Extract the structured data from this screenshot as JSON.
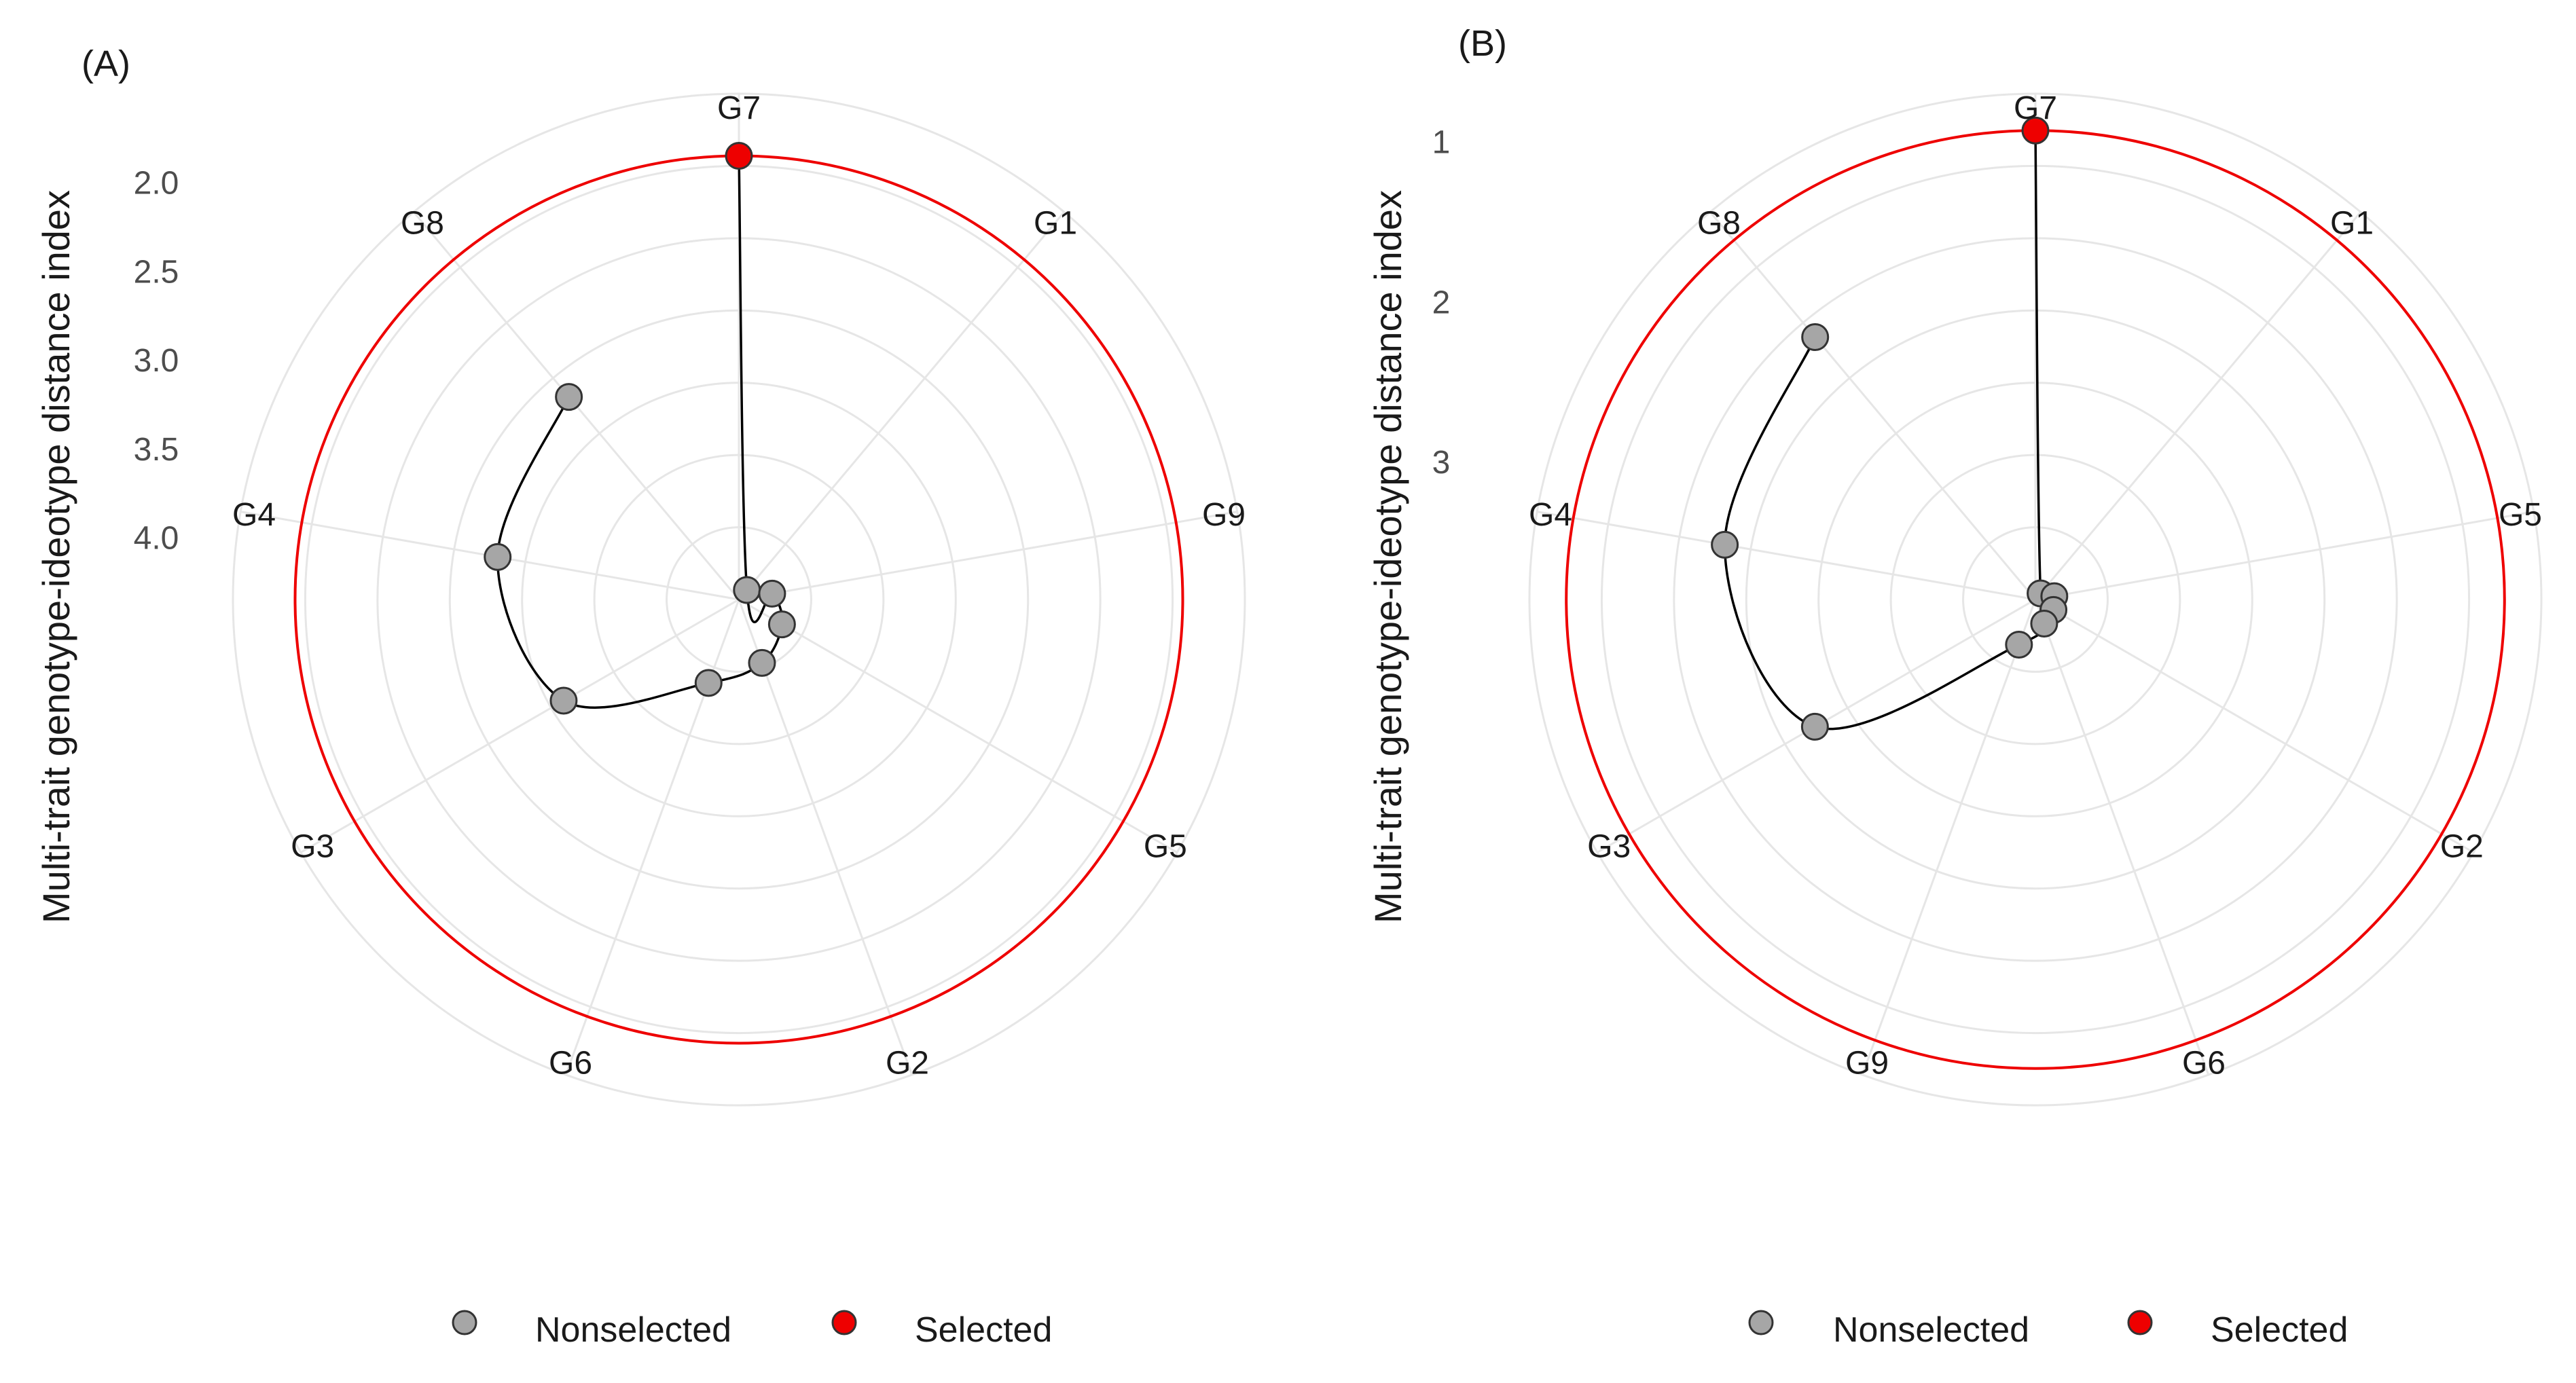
{
  "legend": {
    "nonselected": "Nonselected",
    "selected": "Selected"
  },
  "colors": {
    "selected": "#ee0000",
    "nonselected": "#a6a6a6",
    "cutoff_circle": "#ee0000",
    "path": "#000000",
    "grid": "#e6e6e6"
  },
  "chart_data": [
    {
      "type": "polar-scatter",
      "panel_label": "(A)",
      "ylabel": "Multi-trait genotype-ideotype distance index",
      "y_ticks": [
        "2.0",
        "2.5",
        "3.0",
        "3.5",
        "4.0"
      ],
      "y_tick_values": [
        2.0,
        2.5,
        3.0,
        3.5,
        4.0
      ],
      "r_axis_reversed": true,
      "r_limits": [
        1.5,
        4.35
      ],
      "cutoff_value": 1.85,
      "genotypes": [
        "G7",
        "G1",
        "G9",
        "G5",
        "G2",
        "G6",
        "G3",
        "G4",
        "G8"
      ],
      "values": [
        1.85,
        4.28,
        4.16,
        4.07,
        3.97,
        3.85,
        3.21,
        2.97,
        2.86
      ],
      "selected": [
        "G7"
      ]
    },
    {
      "type": "polar-scatter",
      "panel_label": "(B)",
      "ylabel": "Multi-trait genotype-ideotype distance index",
      "y_ticks": [
        "1",
        "2",
        "3"
      ],
      "y_tick_values": [
        1,
        2,
        3
      ],
      "r_axis_reversed": true,
      "r_limits": [
        0.7,
        3.86
      ],
      "cutoff_value": 0.93,
      "genotypes": [
        "G7",
        "G1",
        "G5",
        "G2",
        "G6",
        "G9",
        "G3",
        "G4",
        "G8"
      ],
      "values": [
        0.93,
        3.81,
        3.74,
        3.73,
        3.7,
        3.56,
        2.27,
        1.89,
        1.72
      ],
      "selected": [
        "G7"
      ]
    }
  ]
}
